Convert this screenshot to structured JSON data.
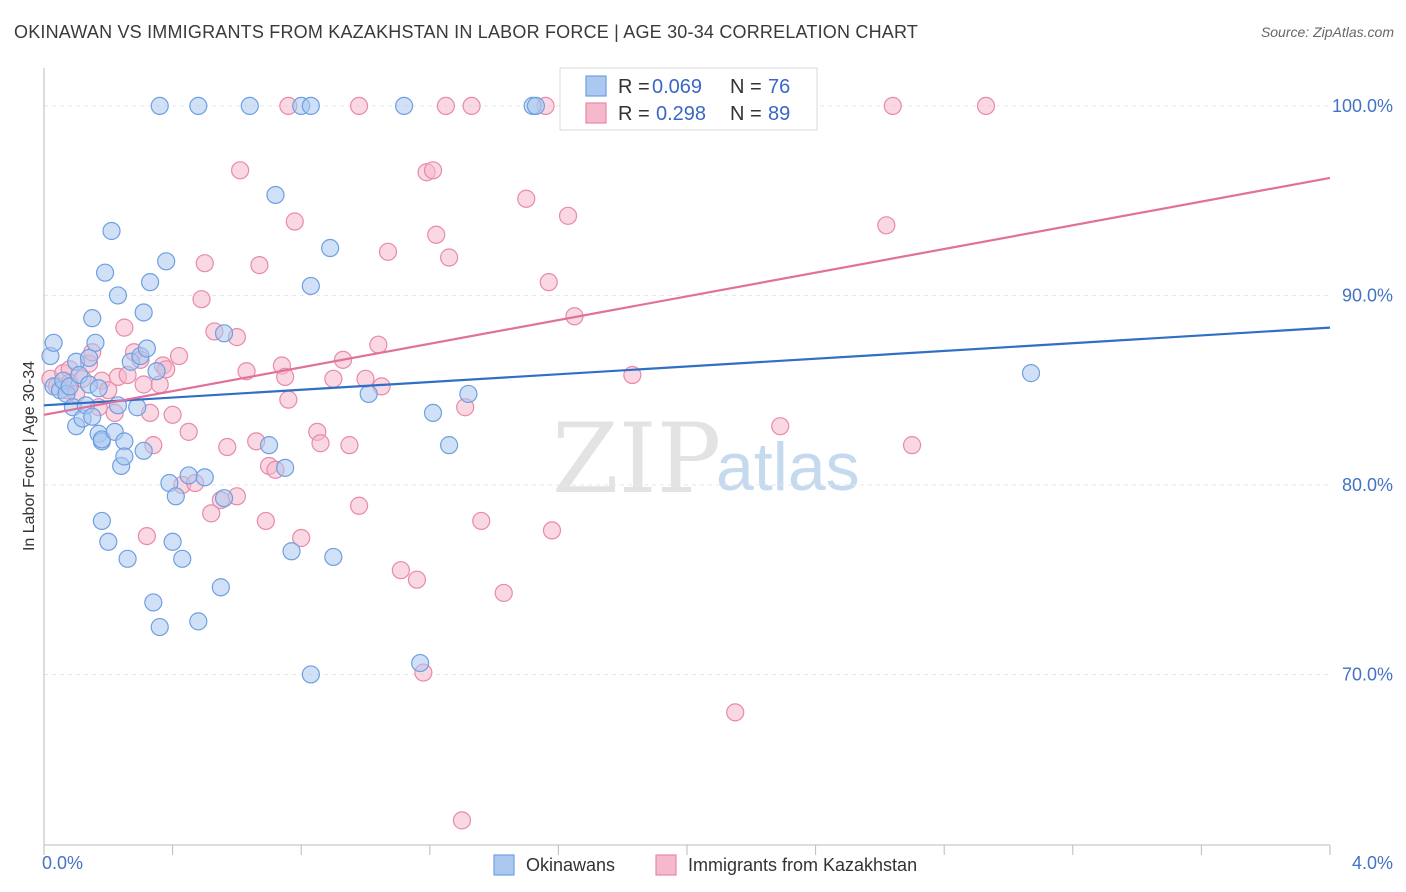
{
  "header": {
    "title": "OKINAWAN VS IMMIGRANTS FROM KAZAKHSTAN IN LABOR FORCE | AGE 30-34 CORRELATION CHART",
    "source": "Source: ZipAtlas.com"
  },
  "watermark": {
    "zip": "ZIP",
    "atlas": "atlas"
  },
  "colors": {
    "blue_fill": "#aac8f0",
    "blue_stroke": "#6f9fe0",
    "blue_line": "#2f6fc4",
    "pink_fill": "#f5b8cc",
    "pink_stroke": "#e88aa8",
    "pink_line": "#e0719a",
    "grid": "#e6e6e6",
    "axis_text": "#4472c4"
  },
  "legend": {
    "rows": [
      {
        "r_label": "R =",
        "r_value": "0.069",
        "n_label": "N =",
        "n_value": "76"
      },
      {
        "r_label": "R =",
        "r_value": "0.298",
        "n_label": "N =",
        "n_value": "89"
      }
    ]
  },
  "bottom_legend": {
    "series1": "Okinawans",
    "series2": "Immigrants from Kazakhstan"
  },
  "chart_data": {
    "type": "scatter",
    "title": "OKINAWAN VS IMMIGRANTS FROM KAZAKHSTAN IN LABOR FORCE | AGE 30-34 CORRELATION CHART",
    "xlabel": "",
    "ylabel": "In Labor Force | Age 30-34",
    "xlim": [
      0,
      4.0
    ],
    "ylim": [
      61,
      102
    ],
    "x_tick_labels": [
      "0.0%",
      "4.0%"
    ],
    "y_ticks": [
      70,
      80,
      90,
      100
    ],
    "y_tick_labels": [
      "70.0%",
      "80.0%",
      "90.0%",
      "100.0%"
    ],
    "grid": true,
    "legend_position": "top-center",
    "series": [
      {
        "name": "Okinawans",
        "r": 0.069,
        "n": 76,
        "trend": [
          [
            0.0,
            84.2
          ],
          [
            4.0,
            88.3
          ]
        ],
        "points": [
          [
            0.02,
            86.8
          ],
          [
            0.03,
            85.2
          ],
          [
            0.03,
            87.5
          ],
          [
            0.05,
            85.0
          ],
          [
            0.06,
            85.5
          ],
          [
            0.07,
            84.8
          ],
          [
            0.08,
            85.2
          ],
          [
            0.09,
            84.1
          ],
          [
            0.1,
            83.1
          ],
          [
            0.1,
            86.5
          ],
          [
            0.11,
            85.8
          ],
          [
            0.12,
            83.5
          ],
          [
            0.13,
            84.2
          ],
          [
            0.14,
            86.7
          ],
          [
            0.14,
            85.3
          ],
          [
            0.15,
            83.6
          ],
          [
            0.15,
            88.8
          ],
          [
            0.16,
            87.5
          ],
          [
            0.17,
            85.1
          ],
          [
            0.17,
            82.7
          ],
          [
            0.18,
            82.3
          ],
          [
            0.18,
            82.4
          ],
          [
            0.18,
            78.1
          ],
          [
            0.19,
            91.2
          ],
          [
            0.2,
            77.0
          ],
          [
            0.21,
            93.4
          ],
          [
            0.22,
            82.8
          ],
          [
            0.23,
            84.2
          ],
          [
            0.23,
            90.0
          ],
          [
            0.24,
            81.0
          ],
          [
            0.25,
            82.3
          ],
          [
            0.25,
            81.5
          ],
          [
            0.26,
            76.1
          ],
          [
            0.27,
            86.5
          ],
          [
            0.29,
            84.1
          ],
          [
            0.3,
            86.8
          ],
          [
            0.31,
            81.8
          ],
          [
            0.31,
            89.1
          ],
          [
            0.32,
            87.2
          ],
          [
            0.33,
            90.7
          ],
          [
            0.34,
            73.8
          ],
          [
            0.35,
            86.0
          ],
          [
            0.36,
            72.5
          ],
          [
            0.38,
            91.8
          ],
          [
            0.39,
            80.1
          ],
          [
            0.4,
            77.0
          ],
          [
            0.41,
            79.4
          ],
          [
            0.43,
            76.1
          ],
          [
            0.45,
            80.5
          ],
          [
            0.48,
            72.8
          ],
          [
            0.5,
            80.4
          ],
          [
            0.55,
            74.6
          ],
          [
            0.56,
            79.3
          ],
          [
            0.56,
            88.0
          ],
          [
            0.7,
            82.1
          ],
          [
            0.75,
            80.9
          ],
          [
            0.72,
            95.3
          ],
          [
            0.77,
            76.5
          ],
          [
            0.83,
            90.5
          ],
          [
            0.83,
            70.0
          ],
          [
            0.89,
            92.5
          ],
          [
            0.9,
            76.2
          ],
          [
            1.01,
            84.8
          ],
          [
            1.17,
            70.6
          ],
          [
            1.21,
            83.8
          ],
          [
            1.26,
            82.1
          ],
          [
            1.32,
            84.8
          ],
          [
            3.07,
            85.9
          ],
          [
            0.36,
            100.0
          ],
          [
            0.48,
            100.0
          ],
          [
            0.64,
            100.0
          ],
          [
            0.8,
            100.0
          ],
          [
            0.83,
            100.0
          ],
          [
            1.12,
            100.0
          ],
          [
            1.52,
            100.0
          ],
          [
            1.53,
            100.0
          ]
        ]
      },
      {
        "name": "Immigrants from Kazakhstan",
        "r": 0.298,
        "n": 89,
        "trend": [
          [
            0.0,
            83.7
          ],
          [
            4.0,
            96.2
          ]
        ],
        "points": [
          [
            0.02,
            85.6
          ],
          [
            0.04,
            85.2
          ],
          [
            0.06,
            85.9
          ],
          [
            0.07,
            85.0
          ],
          [
            0.08,
            86.1
          ],
          [
            0.08,
            85.4
          ],
          [
            0.1,
            84.8
          ],
          [
            0.12,
            85.6
          ],
          [
            0.14,
            86.4
          ],
          [
            0.15,
            87.0
          ],
          [
            0.17,
            84.1
          ],
          [
            0.18,
            85.5
          ],
          [
            0.2,
            85.0
          ],
          [
            0.22,
            83.8
          ],
          [
            0.23,
            85.7
          ],
          [
            0.25,
            88.3
          ],
          [
            0.26,
            85.8
          ],
          [
            0.28,
            87.0
          ],
          [
            0.3,
            86.6
          ],
          [
            0.31,
            85.3
          ],
          [
            0.32,
            77.3
          ],
          [
            0.33,
            83.8
          ],
          [
            0.34,
            82.1
          ],
          [
            0.36,
            85.3
          ],
          [
            0.37,
            86.3
          ],
          [
            0.38,
            86.1
          ],
          [
            0.4,
            83.7
          ],
          [
            0.42,
            86.8
          ],
          [
            0.43,
            80.0
          ],
          [
            0.45,
            82.8
          ],
          [
            0.47,
            80.1
          ],
          [
            0.49,
            89.8
          ],
          [
            0.5,
            91.7
          ],
          [
            0.52,
            78.5
          ],
          [
            0.53,
            88.1
          ],
          [
            0.55,
            79.2
          ],
          [
            0.57,
            82.0
          ],
          [
            0.6,
            87.8
          ],
          [
            0.6,
            79.4
          ],
          [
            0.61,
            96.6
          ],
          [
            0.63,
            86.0
          ],
          [
            0.66,
            82.3
          ],
          [
            0.67,
            91.6
          ],
          [
            0.69,
            78.1
          ],
          [
            0.7,
            81.0
          ],
          [
            0.72,
            80.8
          ],
          [
            0.74,
            86.3
          ],
          [
            0.75,
            85.7
          ],
          [
            0.76,
            84.5
          ],
          [
            0.78,
            93.9
          ],
          [
            0.8,
            77.2
          ],
          [
            0.85,
            82.8
          ],
          [
            0.86,
            82.2
          ],
          [
            0.9,
            85.6
          ],
          [
            0.93,
            86.6
          ],
          [
            0.95,
            82.1
          ],
          [
            0.98,
            78.9
          ],
          [
            1.0,
            85.6
          ],
          [
            1.04,
            87.4
          ],
          [
            1.05,
            85.2
          ],
          [
            1.07,
            92.3
          ],
          [
            1.11,
            75.5
          ],
          [
            1.16,
            75.0
          ],
          [
            1.18,
            70.1
          ],
          [
            1.19,
            96.5
          ],
          [
            1.21,
            96.6
          ],
          [
            1.22,
            93.2
          ],
          [
            1.26,
            92.0
          ],
          [
            1.3,
            62.3
          ],
          [
            1.31,
            84.1
          ],
          [
            1.36,
            78.1
          ],
          [
            1.43,
            74.3
          ],
          [
            1.5,
            95.1
          ],
          [
            1.57,
            90.7
          ],
          [
            1.58,
            77.6
          ],
          [
            1.63,
            94.2
          ],
          [
            1.65,
            88.9
          ],
          [
            1.83,
            85.8
          ],
          [
            2.15,
            68.0
          ],
          [
            2.29,
            83.1
          ],
          [
            2.62,
            93.7
          ],
          [
            2.7,
            82.1
          ],
          [
            1.56,
            100.0
          ],
          [
            0.76,
            100.0
          ],
          [
            0.98,
            100.0
          ],
          [
            1.25,
            100.0
          ],
          [
            1.33,
            100.0
          ],
          [
            2.64,
            100.0
          ],
          [
            2.93,
            100.0
          ]
        ]
      }
    ]
  }
}
